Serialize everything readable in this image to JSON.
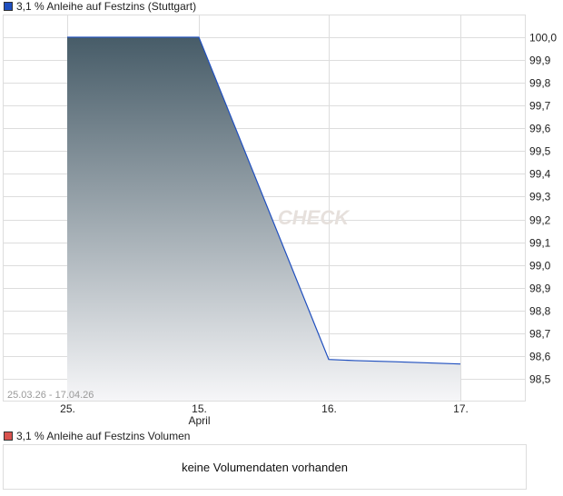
{
  "chart_data": {
    "type": "area",
    "title": "3,1 % Anleihe auf Festzins (Stuttgart)",
    "series_color": "#1f4fbf",
    "categories": [
      "25.",
      "15.",
      "16.",
      "17."
    ],
    "sub_labels": [
      "",
      "April",
      "",
      ""
    ],
    "points": [
      [
        0,
        100.0
      ],
      [
        1,
        100.0
      ],
      [
        2,
        98.585
      ],
      [
        2.2,
        98.58
      ],
      [
        2.5,
        98.575
      ],
      [
        2.75,
        98.57
      ],
      [
        3,
        98.565
      ]
    ],
    "yticks": [
      "100,0",
      "99,9",
      "99,8",
      "99,7",
      "99,6",
      "99,5",
      "99,4",
      "99,3",
      "99,2",
      "99,1",
      "99,0",
      "98,9",
      "98,8",
      "98,7",
      "98,6",
      "98,5"
    ],
    "ylim": [
      98.4,
      100.1
    ],
    "grid": true,
    "date_range": "25.03.26 - 17.04.26",
    "watermark": "CHECK"
  },
  "volume": {
    "title": "3,1 % Anleihe auf Festzins Volumen",
    "color": "#d9534f",
    "message": "keine Volumendaten vorhanden"
  }
}
